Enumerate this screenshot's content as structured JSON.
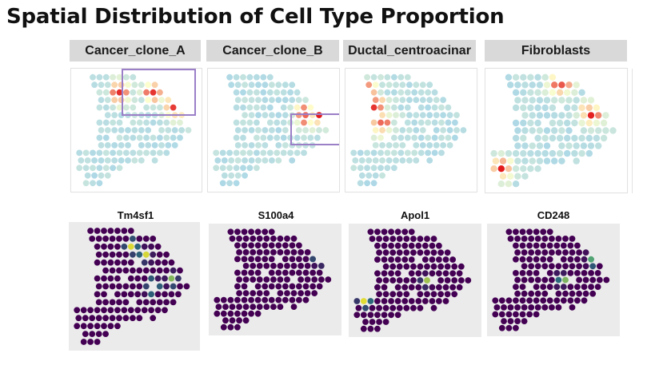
{
  "title": "Spatial Distribution of Cell Type Proportion",
  "cell_types": [
    {
      "label": "Cancer_clone_A"
    },
    {
      "label": "Cancer_clone_B"
    },
    {
      "label": "Ductal_centroacinar"
    },
    {
      "label": "Fibroblasts"
    }
  ],
  "genes": [
    {
      "label": "Tm4sf1"
    },
    {
      "label": "S100a4"
    },
    {
      "label": "Apol1"
    },
    {
      "label": "CD248"
    }
  ],
  "colors": {
    "proportion_low": "#add8e6",
    "proportion_mid": "#ffffcc",
    "proportion_high": "#e31a1c",
    "expression_low": "#440154",
    "expression_mid": "#21918c",
    "expression_high": "#fde725",
    "highlight_box": "#9b7fc7",
    "panel_background": "#ebebeb"
  }
}
